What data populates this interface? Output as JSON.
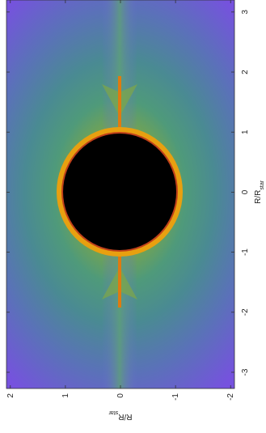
{
  "chart_data": {
    "type": "heatmap",
    "x_label": "R/R",
    "x_label_sub": "star",
    "y_label": "R/R",
    "y_label_sub": "star",
    "xlim": [
      -3.27,
      3.2
    ],
    "xticks": [
      -3,
      -2,
      -1,
      0,
      1,
      2,
      3
    ],
    "ylim": [
      -2.07,
      2.07
    ],
    "yticks": [
      -2,
      -1,
      0,
      1,
      2
    ]
  }
}
